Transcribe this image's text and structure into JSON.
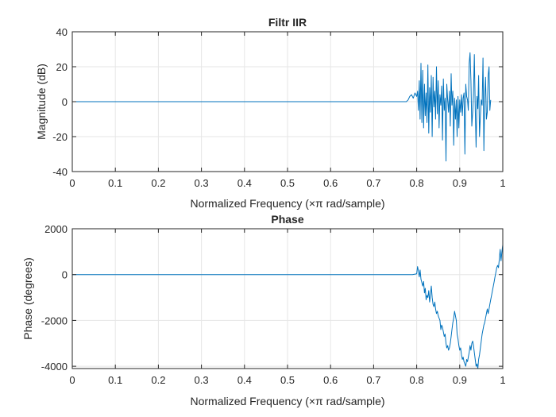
{
  "figure": {
    "background": "#ffffff",
    "axis_color": "#262626",
    "grid_color": "#e6e6e6",
    "line_color": "#0072bd"
  },
  "chart_data": [
    {
      "type": "line",
      "title": "Filtr IIR",
      "xlabel": "Normalized Frequency  (×π rad/sample)",
      "ylabel": "Magnitude (dB)",
      "xlim": [
        0,
        1
      ],
      "ylim": [
        -40,
        40
      ],
      "xticks": [
        0,
        0.1,
        0.2,
        0.3,
        0.4,
        0.5,
        0.6,
        0.7,
        0.8,
        0.9,
        1
      ],
      "xtick_labels": [
        "0",
        "0.1",
        "0.2",
        "0.3",
        "0.4",
        "0.5",
        "0.6",
        "0.7",
        "0.8",
        "0.9",
        "1"
      ],
      "yticks": [
        -40,
        -20,
        0,
        20,
        40
      ],
      "ytick_labels": [
        "-40",
        "-20",
        "0",
        "20",
        "40"
      ],
      "grid": true,
      "series": [
        {
          "x": [
            0,
            0.776,
            0.78,
            0.784,
            0.788,
            0.792,
            0.796,
            0.8,
            0.802,
            0.804,
            0.806,
            0.808,
            0.81,
            0.812,
            0.814,
            0.816,
            0.818,
            0.82,
            0.822,
            0.824,
            0.826,
            0.828,
            0.83,
            0.832,
            0.834,
            0.836,
            0.838,
            0.84,
            0.842,
            0.844,
            0.846,
            0.848,
            0.85,
            0.852,
            0.854,
            0.856,
            0.858,
            0.86,
            0.862,
            0.864,
            0.866,
            0.868,
            0.87,
            0.872,
            0.874,
            0.876,
            0.878,
            0.88,
            0.882,
            0.884,
            0.886,
            0.888,
            0.89,
            0.892,
            0.894,
            0.896,
            0.898,
            0.9,
            0.902,
            0.904,
            0.906,
            0.908,
            0.91,
            0.912,
            0.914,
            0.916,
            0.918,
            0.92,
            0.922,
            0.924,
            0.926,
            0.928,
            0.93,
            0.932,
            0.934,
            0.936,
            0.938,
            0.94,
            0.942,
            0.944,
            0.946,
            0.948,
            0.95,
            0.952,
            0.954,
            0.956,
            0.958,
            0.96,
            0.962,
            0.964,
            0.966,
            0.968,
            0.97,
            0.972
          ],
          "y": [
            0,
            0,
            1,
            3,
            4,
            2,
            5,
            3,
            6,
            -5,
            12,
            -10,
            22,
            -12,
            18,
            -15,
            10,
            -8,
            5,
            -12,
            21,
            -18,
            8,
            -6,
            15,
            -20,
            14,
            -3,
            6,
            -10,
            20,
            -7,
            12,
            -15,
            4,
            -2,
            9,
            -22,
            13,
            -5,
            2,
            -34,
            10,
            1,
            -6,
            6,
            -14,
            16,
            -2,
            6,
            -25,
            2,
            -10,
            1,
            -20,
            3,
            -15,
            1,
            -6,
            4,
            -8,
            2,
            5,
            -30,
            10,
            3,
            1,
            -5,
            22,
            28,
            12,
            -14,
            -6,
            4,
            27,
            -3,
            -26,
            3,
            -4,
            15,
            -20,
            -8,
            1,
            -2,
            25,
            -28,
            2,
            14,
            -10,
            -6,
            15,
            20,
            -5,
            1
          ]
        }
      ]
    },
    {
      "type": "line",
      "title": "Phase",
      "xlabel": "Normalized Frequency  (×π rad/sample)",
      "ylabel": "Phase (degrees)",
      "xlim": [
        0,
        1
      ],
      "ylim": [
        -4100,
        2000
      ],
      "xticks": [
        0,
        0.1,
        0.2,
        0.3,
        0.4,
        0.5,
        0.6,
        0.7,
        0.8,
        0.9,
        1
      ],
      "xtick_labels": [
        "0",
        "0.1",
        "0.2",
        "0.3",
        "0.4",
        "0.5",
        "0.6",
        "0.7",
        "0.8",
        "0.9",
        "1"
      ],
      "yticks": [
        -4000,
        -2000,
        0,
        2000
      ],
      "ytick_labels": [
        "-4000",
        "-2000",
        "0",
        "2000"
      ],
      "grid": true,
      "series": [
        {
          "x": [
            0,
            0.79,
            0.8,
            0.802,
            0.804,
            0.806,
            0.808,
            0.81,
            0.812,
            0.814,
            0.816,
            0.818,
            0.82,
            0.822,
            0.824,
            0.826,
            0.828,
            0.83,
            0.832,
            0.834,
            0.836,
            0.838,
            0.84,
            0.842,
            0.844,
            0.846,
            0.848,
            0.85,
            0.852,
            0.854,
            0.856,
            0.858,
            0.86,
            0.862,
            0.864,
            0.866,
            0.868,
            0.87,
            0.872,
            0.874,
            0.876,
            0.878,
            0.88,
            0.882,
            0.884,
            0.886,
            0.888,
            0.89,
            0.892,
            0.894,
            0.896,
            0.898,
            0.9,
            0.902,
            0.904,
            0.906,
            0.908,
            0.91,
            0.912,
            0.914,
            0.916,
            0.918,
            0.92,
            0.922,
            0.924,
            0.926,
            0.928,
            0.93,
            0.932,
            0.934,
            0.936,
            0.938,
            0.94,
            0.942,
            0.944,
            0.946,
            0.948,
            0.95,
            0.952,
            0.954,
            0.956,
            0.958,
            0.96,
            0.962,
            0.964,
            0.966,
            0.968,
            0.97,
            0.972,
            0.974,
            0.976,
            0.978,
            0.98,
            0.982,
            0.984,
            0.986,
            0.988,
            0.99,
            0.992,
            0.994,
            0.996,
            0.998,
            1.0
          ],
          "y": [
            0,
            0,
            30,
            350,
            150,
            -100,
            200,
            -200,
            -350,
            -500,
            -300,
            -800,
            -600,
            -1100,
            -900,
            -1000,
            -700,
            -1200,
            -900,
            -500,
            -1000,
            -1300,
            -1400,
            -1200,
            -1500,
            -1700,
            -1600,
            -1800,
            -1900,
            -2000,
            -2400,
            -2200,
            -2300,
            -2500,
            -2700,
            -2600,
            -3000,
            -3200,
            -3100,
            -3300,
            -3200,
            -3000,
            -2700,
            -2400,
            -2100,
            -1900,
            -1600,
            -1800,
            -2000,
            -2600,
            -2800,
            -3100,
            -3300,
            -3200,
            -3500,
            -3700,
            -3600,
            -3800,
            -3900,
            -4000,
            -3700,
            -3800,
            -3600,
            -3400,
            -3100,
            -3300,
            -3000,
            -2900,
            -3100,
            -3400,
            -3700,
            -4000,
            -3900,
            -4100,
            -3700,
            -3500,
            -3200,
            -2900,
            -2600,
            -2400,
            -2200,
            -2100,
            -1900,
            -1700,
            -1500,
            -1700,
            -1500,
            -1300,
            -1100,
            -900,
            -700,
            -500,
            -300,
            -100,
            100,
            300,
            400,
            300,
            700,
            1100,
            600,
            1000,
            1300
          ]
        }
      ]
    }
  ]
}
